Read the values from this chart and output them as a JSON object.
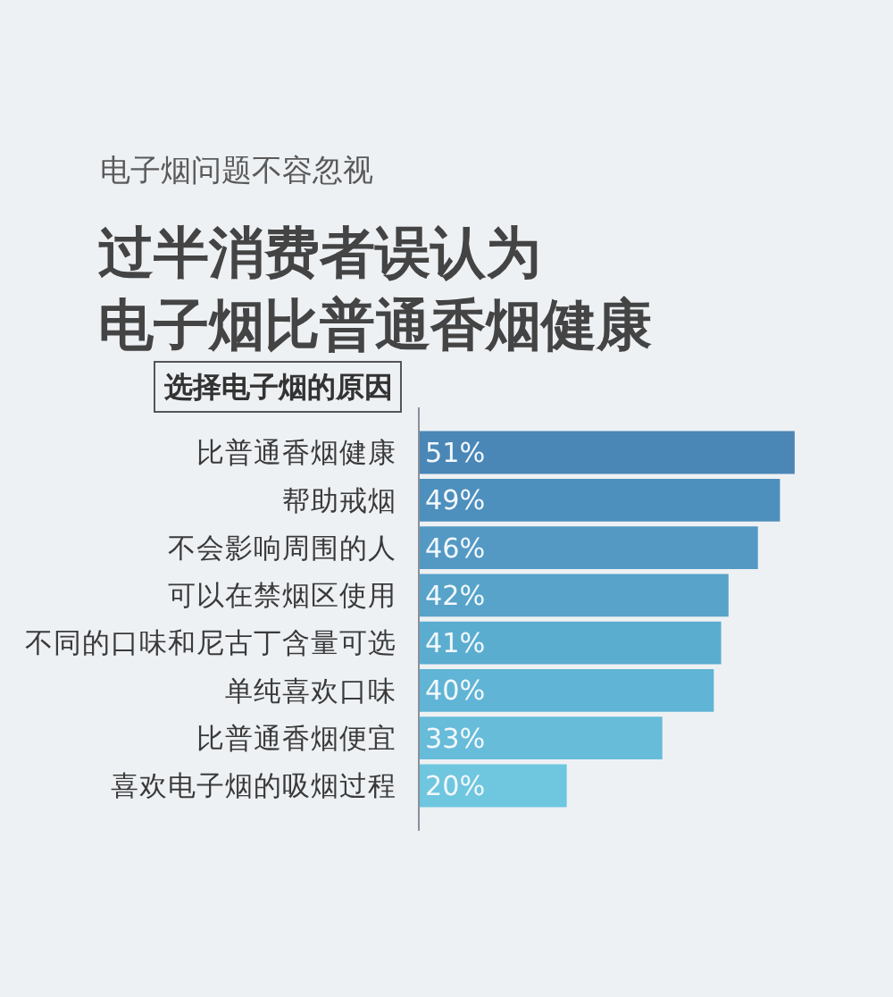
{
  "chart_data": {
    "type": "bar",
    "orientation": "horizontal",
    "subtitle": "电子烟问题不容忽视",
    "title": "过半消费者误认为电子烟比普通香烟健康",
    "ylabel": "选择电子烟的原因",
    "categories": [
      "比普通香烟健康",
      "帮助戒烟",
      "不会影响周围的人",
      "可以在禁烟区使用",
      "不同的口味和尼古丁含量可选",
      "单纯喜欢口味",
      "比普通香烟便宜",
      "喜欢电子烟的吸烟过程"
    ],
    "values": [
      51,
      49,
      46,
      42,
      41,
      40,
      33,
      20
    ],
    "value_labels": [
      "51%",
      "49%",
      "46%",
      "42%",
      "41%",
      "40%",
      "33%",
      "20%"
    ],
    "colors": [
      "#4a86b6",
      "#4d8fbd",
      "#5399c4",
      "#57a3c9",
      "#5badd0",
      "#60b4d5",
      "#66bcd9",
      "#6ec6df"
    ],
    "tick_labels": "y"
  }
}
